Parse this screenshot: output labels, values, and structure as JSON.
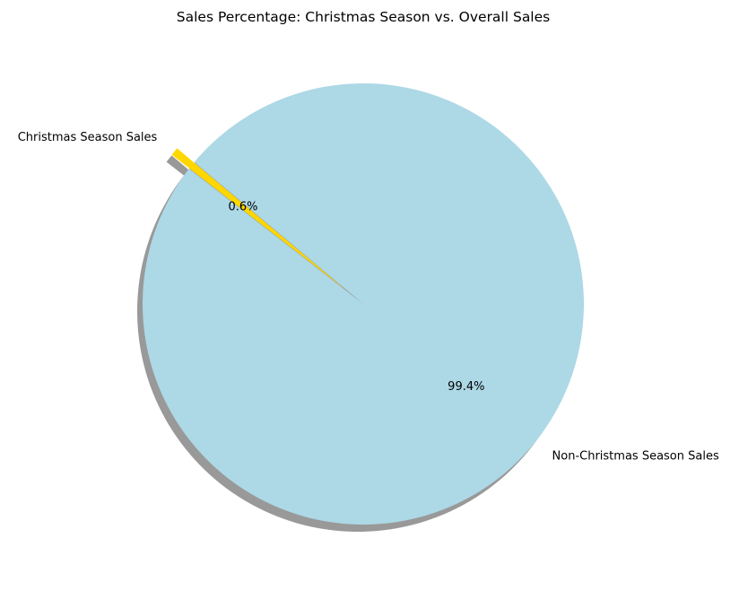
{
  "chart_data": {
    "type": "pie",
    "title": "Sales Percentage: Christmas Season vs. Overall Sales",
    "labels": [
      "Christmas Season Sales",
      "Non-Christmas Season Sales"
    ],
    "values": [
      0.6,
      99.4
    ],
    "percent_labels": [
      "0.6%",
      "99.4%"
    ],
    "colors": [
      "#FFD700",
      "#ADD8E6"
    ],
    "explode": [
      0.1,
      0
    ],
    "start_angle_degrees": 140,
    "shadow": true
  }
}
